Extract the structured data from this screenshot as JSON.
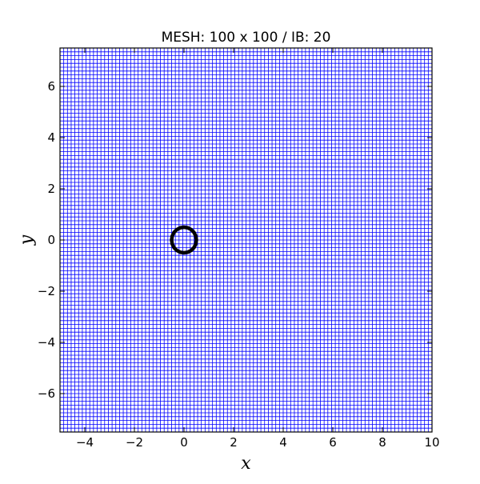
{
  "chart_data": {
    "type": "scatter",
    "title": "MESH: 100 x 100 / IB: 20",
    "xlabel": "x",
    "ylabel": "y",
    "xlim": [
      -5,
      10
    ],
    "ylim": [
      -7.5,
      7.5
    ],
    "x_ticks": [
      -4,
      -2,
      0,
      2,
      4,
      6,
      8,
      10
    ],
    "y_ticks": [
      -6,
      -4,
      -2,
      0,
      2,
      4,
      6
    ],
    "x_tick_labels": [
      "−4",
      "−2",
      "0",
      "2",
      "4",
      "6",
      "8",
      "10"
    ],
    "y_tick_labels": [
      "−6",
      "−4",
      "−2",
      "0",
      "2",
      "4",
      "6"
    ],
    "mesh": {
      "nx": 100,
      "ny": 100,
      "color": "#0000ff"
    },
    "immersed_boundary": {
      "points": 20,
      "center": [
        0,
        0
      ],
      "radius": 0.5,
      "color": "#000000"
    },
    "grid": true,
    "legend": "none"
  }
}
